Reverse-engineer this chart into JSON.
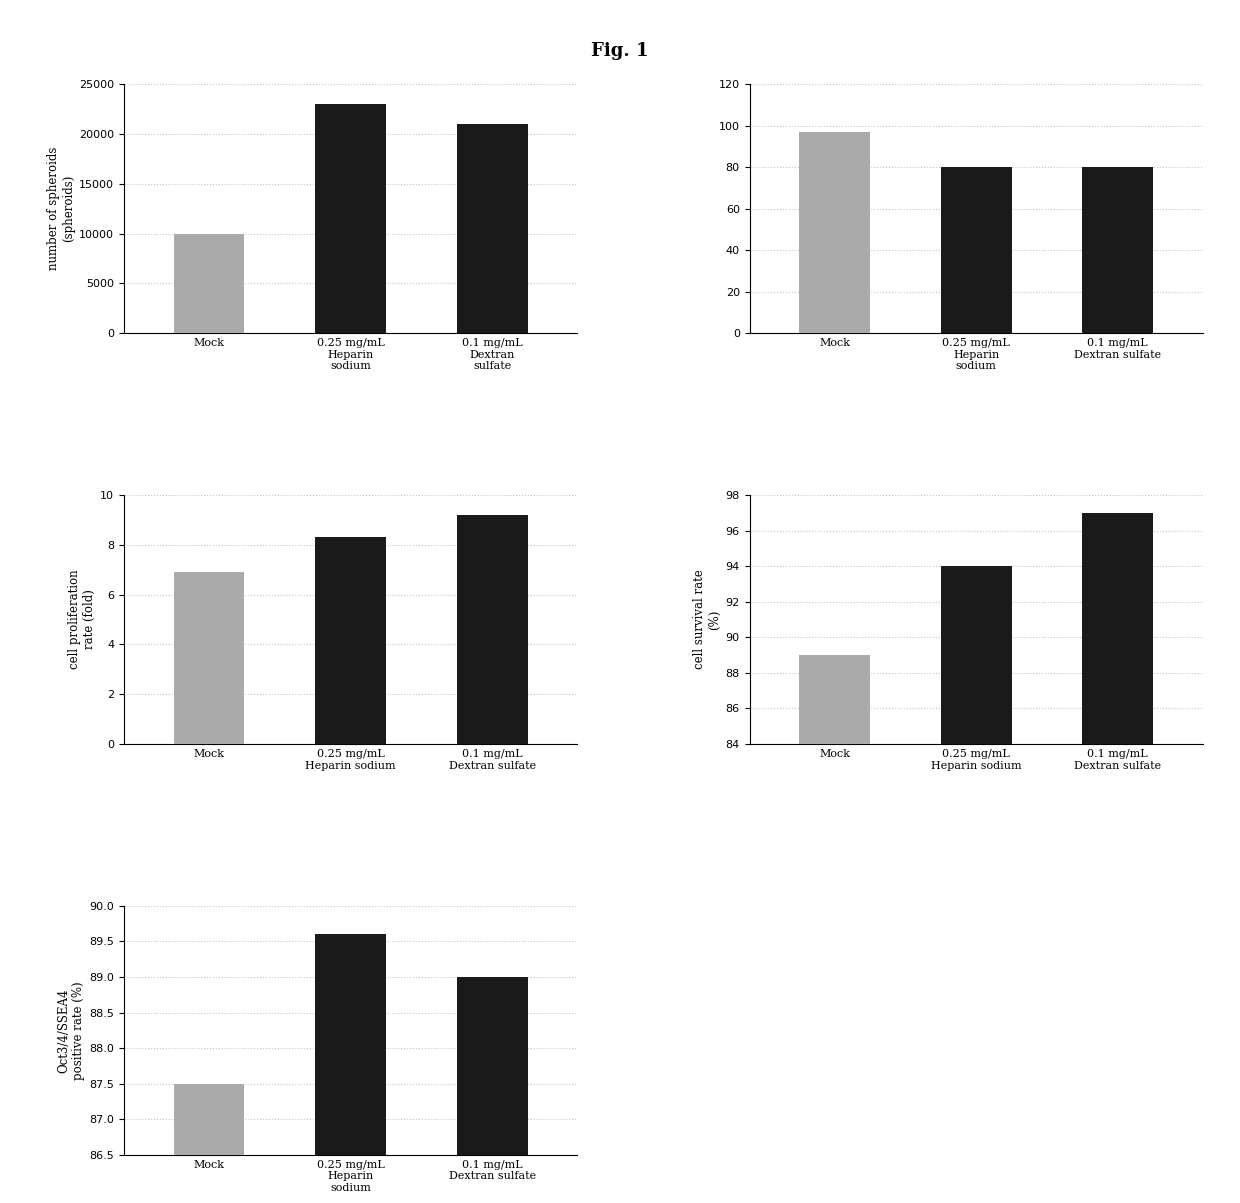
{
  "fig_title": "Fig. 1",
  "background_color": "#ffffff",
  "grid_color": "#888888",
  "grid_alpha": 0.5,
  "plot1": {
    "ylabel": "number of spheroids\n(spheroids)",
    "values": [
      10000,
      23000,
      21000
    ],
    "ylim": [
      0,
      25000
    ],
    "yticks": [
      0,
      5000,
      10000,
      15000,
      20000,
      25000
    ],
    "mock_color": "#aaaaaa",
    "dark_color": "#1a1a1a",
    "xtick_labels": [
      "Mock",
      "0.25 mg/mL\nHeparin\nsodium",
      "0.1 mg/mL\nDextran\nsulfate"
    ]
  },
  "plot2": {
    "ylabel": "",
    "values": [
      97,
      80,
      80
    ],
    "ylim": [
      0,
      120
    ],
    "yticks": [
      0,
      20,
      40,
      60,
      80,
      100,
      120
    ],
    "mock_color": "#aaaaaa",
    "dark_color": "#1a1a1a",
    "xtick_labels": [
      "Mock",
      "0.25 mg/mL\nHeparin\nsodium",
      "0.1 mg/mL\nDextran sulfate"
    ]
  },
  "plot3": {
    "ylabel": "cell proliferation\nrate (fold)",
    "values": [
      6.9,
      8.3,
      9.2
    ],
    "ylim": [
      0,
      10
    ],
    "yticks": [
      0,
      2,
      4,
      6,
      8,
      10
    ],
    "mock_color": "#aaaaaa",
    "dark_color": "#1a1a1a",
    "xtick_labels": [
      "Mock",
      "0.25 mg/mL\nHeparin sodium",
      "0.1 mg/mL\nDextran sulfate"
    ]
  },
  "plot4": {
    "ylabel": "cell survival rate\n(%)",
    "values": [
      89.0,
      94.0,
      97.0
    ],
    "ylim": [
      84,
      98
    ],
    "yticks": [
      84,
      86,
      88,
      90,
      92,
      94,
      96,
      98
    ],
    "mock_color": "#aaaaaa",
    "dark_color": "#1a1a1a",
    "xtick_labels": [
      "Mock",
      "0.25 mg/mL\nHeparin sodium",
      "0.1 mg/mL\nDextran sulfate"
    ]
  },
  "plot5": {
    "ylabel": "Oct3/4/SSEA4\npositive rate (%)",
    "values": [
      87.5,
      89.6,
      89.0
    ],
    "ylim": [
      86.5,
      90
    ],
    "yticks": [
      86.5,
      87.0,
      87.5,
      88.0,
      88.5,
      89.0,
      89.5,
      90.0
    ],
    "mock_color": "#aaaaaa",
    "dark_color": "#1a1a1a",
    "xtick_labels": [
      "Mock",
      "0.25 mg/mL\nHeparin\nsodium",
      "0.1 mg/mL\nDextran sulfate"
    ]
  },
  "bar_width": 0.5,
  "tick_fontsize": 8,
  "label_fontsize": 8.5,
  "title_fontsize": 13
}
